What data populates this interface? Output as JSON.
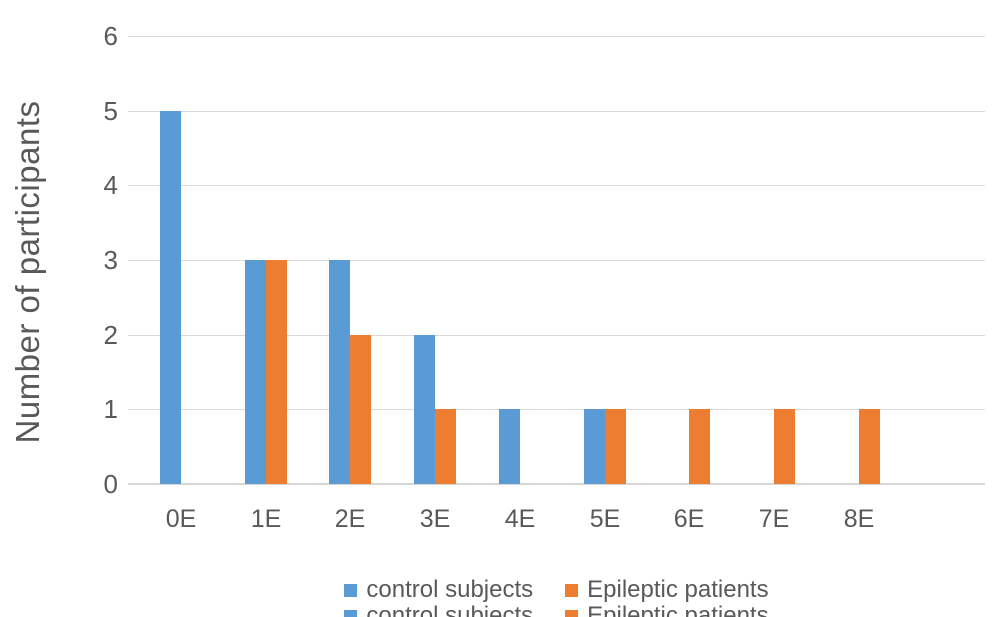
{
  "chart_data": {
    "type": "bar",
    "title": "",
    "categories": [
      "0E",
      "1E",
      "2E",
      "3E",
      "4E",
      "5E",
      "6E",
      "7E",
      "8E"
    ],
    "series": [
      {
        "name": "control subjects",
        "color": "#5B9BD5",
        "values": [
          5,
          3,
          3,
          2,
          1,
          1,
          0,
          0,
          0
        ]
      },
      {
        "name": "Epileptic patients",
        "color": "#ED7D31",
        "values": [
          0,
          3,
          2,
          1,
          0,
          1,
          1,
          1,
          1
        ]
      }
    ],
    "xlabel": "",
    "ylabel": "Number of participants",
    "ylim": [
      0,
      6
    ],
    "yticks": [
      0,
      1,
      2,
      3,
      4,
      5,
      6
    ],
    "grid": true,
    "legend_position": "bottom",
    "legend_second_row_clipped": true
  },
  "legend": {
    "items": [
      {
        "label": "control subjects",
        "color": "#5B9BD5"
      },
      {
        "label": "Epileptic patients",
        "color": "#ED7D31"
      }
    ]
  },
  "colors": {
    "grid": "#D9D9D9",
    "axis": "#D6D6D6",
    "text": "#595959",
    "background": "#FFFFFF"
  }
}
